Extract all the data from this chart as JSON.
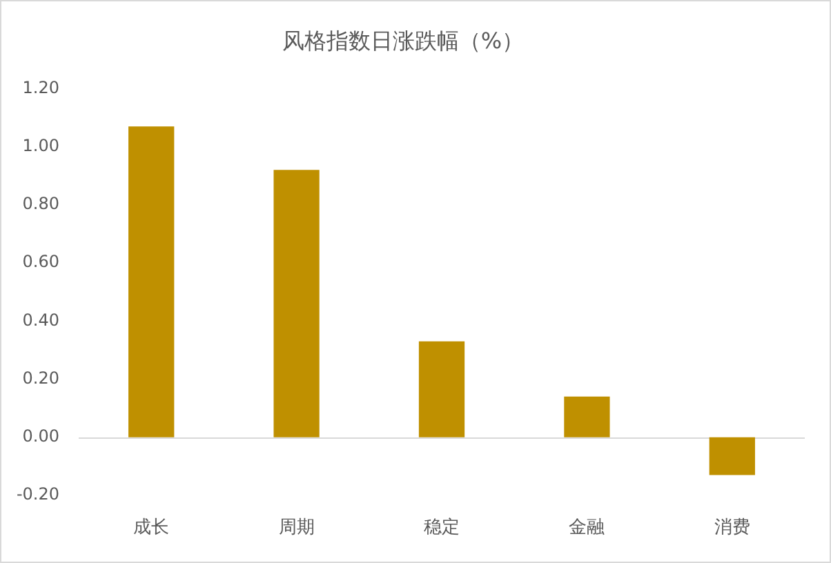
{
  "chart_data": {
    "type": "bar",
    "title": "风格指数日涨跌幅（%）",
    "categories": [
      "成长",
      "周期",
      "稳定",
      "金融",
      "消费"
    ],
    "values": [
      1.07,
      0.92,
      0.33,
      0.14,
      -0.13
    ],
    "color": "#bf9000",
    "ylim": [
      -0.2,
      1.2
    ],
    "yticks": [
      {
        "value": -0.2,
        "label": "-0.20"
      },
      {
        "value": 0,
        "label": "0.00"
      },
      {
        "value": 0.2,
        "label": "0.20"
      },
      {
        "value": 0.4,
        "label": "0.40"
      },
      {
        "value": 0.6,
        "label": "0.60"
      },
      {
        "value": 0.8,
        "label": "0.80"
      },
      {
        "value": 1,
        "label": "1.00"
      },
      {
        "value": 1.2,
        "label": "1.20"
      }
    ],
    "ref_lines": [
      {
        "axis": "y",
        "value": 0,
        "color": "#d9d9d9"
      }
    ],
    "grid": false
  }
}
